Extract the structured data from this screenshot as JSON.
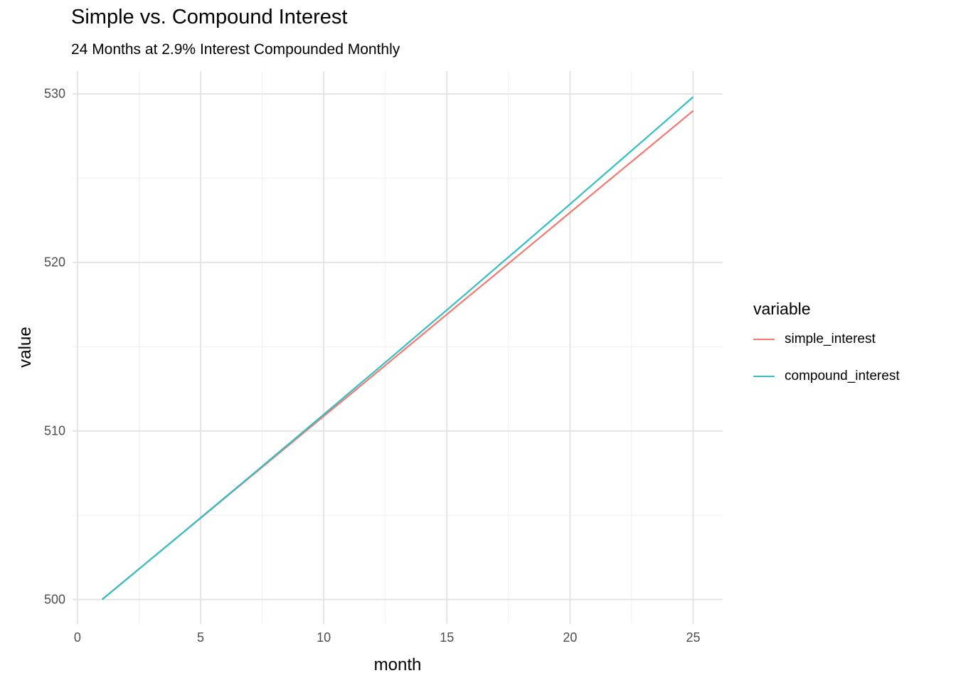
{
  "chart_data": {
    "type": "line",
    "title": "Simple vs. Compound Interest",
    "subtitle": "24 Months at 2.9% Interest Compounded Monthly",
    "xlabel": "month",
    "ylabel": "value",
    "x": [
      1,
      2,
      3,
      4,
      5,
      6,
      7,
      8,
      9,
      10,
      11,
      12,
      13,
      14,
      15,
      16,
      17,
      18,
      19,
      20,
      21,
      22,
      23,
      24,
      25
    ],
    "series": [
      {
        "name": "simple_interest",
        "color": "#F8766D",
        "values": [
          500.0,
          501.21,
          502.42,
          503.63,
          504.83,
          506.04,
          507.25,
          508.46,
          509.67,
          510.88,
          512.08,
          513.29,
          514.5,
          515.71,
          516.92,
          518.13,
          519.33,
          520.54,
          521.75,
          522.96,
          524.17,
          525.38,
          526.58,
          527.79,
          529.0
        ]
      },
      {
        "name": "compound_interest",
        "color": "#33BFC4",
        "values": [
          500.0,
          501.21,
          502.42,
          503.63,
          504.85,
          506.07,
          507.29,
          508.52,
          509.75,
          510.98,
          512.22,
          513.45,
          514.69,
          515.94,
          517.18,
          518.43,
          519.69,
          520.94,
          522.2,
          523.46,
          524.73,
          526.0,
          527.27,
          528.54,
          529.82
        ]
      }
    ],
    "x_ticks": [
      0,
      5,
      10,
      15,
      20,
      25
    ],
    "x_minor_ticks": [
      2.5,
      7.5,
      12.5,
      17.5,
      22.5
    ],
    "y_ticks": [
      500,
      510,
      520,
      530
    ],
    "y_minor_ticks": [
      505,
      515,
      525
    ],
    "xlim": [
      -0.2,
      26.2
    ],
    "ylim": [
      498.55,
      531.35
    ],
    "grid": true,
    "legend": {
      "title": "variable",
      "position": "right"
    }
  },
  "style": {
    "background": "#FFFFFF",
    "grid_major_color": "#E5E5E5",
    "grid_minor_color": "#F0F0F0",
    "tick_label_color": "#4D4D4D",
    "text_color": "#000000"
  }
}
